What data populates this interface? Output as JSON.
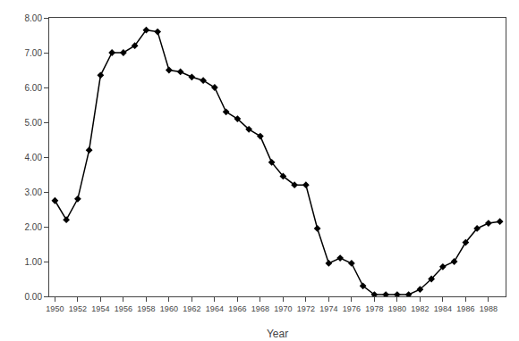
{
  "chart_data": {
    "type": "line",
    "x": [
      1950,
      1951,
      1952,
      1953,
      1954,
      1955,
      1956,
      1957,
      1958,
      1959,
      1960,
      1961,
      1962,
      1963,
      1964,
      1965,
      1966,
      1967,
      1968,
      1969,
      1970,
      1971,
      1972,
      1973,
      1974,
      1975,
      1976,
      1977,
      1978,
      1979,
      1980,
      1981,
      1982,
      1983,
      1984,
      1985,
      1986,
      1987,
      1988,
      1989
    ],
    "values": [
      2.75,
      2.2,
      2.8,
      4.2,
      6.35,
      7.0,
      7.0,
      7.2,
      7.65,
      7.6,
      6.5,
      6.45,
      6.3,
      6.2,
      6.0,
      5.3,
      5.1,
      4.8,
      4.6,
      3.85,
      3.45,
      3.2,
      3.2,
      1.95,
      0.95,
      1.1,
      0.95,
      0.3,
      0.05,
      0.05,
      0.05,
      0.05,
      0.2,
      0.5,
      0.85,
      1.0,
      1.55,
      1.95,
      2.1,
      2.15
    ],
    "xlim": [
      1949.5,
      1989.5
    ],
    "ylim": [
      0.0,
      8.0
    ],
    "xticks": [
      1950,
      1952,
      1954,
      1956,
      1958,
      1960,
      1962,
      1964,
      1966,
      1968,
      1970,
      1972,
      1974,
      1976,
      1978,
      1980,
      1982,
      1984,
      1986,
      1988
    ],
    "yticks": [
      {
        "value": 0,
        "label": "0.00"
      },
      {
        "value": 1,
        "label": "1.00"
      },
      {
        "value": 2,
        "label": "2.00"
      },
      {
        "value": 3,
        "label": "3.00"
      },
      {
        "value": 4,
        "label": "4.00"
      },
      {
        "value": 5,
        "label": "5.00"
      },
      {
        "value": 6,
        "label": "6.00"
      },
      {
        "value": 7,
        "label": "7.00"
      },
      {
        "value": 8,
        "label": "8.00"
      }
    ],
    "xlabel": "Year",
    "color": "#000000",
    "marker": "diamond",
    "grid": false
  }
}
